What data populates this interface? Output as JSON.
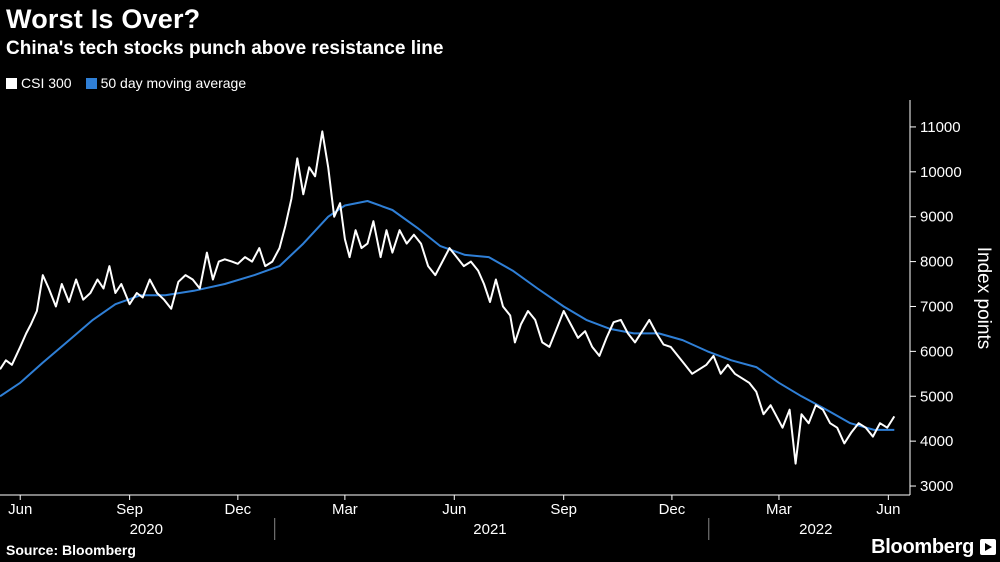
{
  "header": {
    "title": "Worst Is Over?",
    "subtitle": "China's tech stocks punch above resistance line"
  },
  "footer": {
    "source": "Source: Bloomberg",
    "brand": "Bloomberg"
  },
  "colors": {
    "csi": "#ffffff",
    "ma": "#2f7fd6",
    "background": "#000000"
  },
  "chart_data": {
    "type": "line",
    "title": "Worst Is Over?",
    "subtitle": "China's tech stocks punch above resistance line",
    "ylabel": "Index points",
    "ylim": [
      2800,
      11600
    ],
    "yticks": [
      3000,
      4000,
      5000,
      6000,
      7000,
      8000,
      9000,
      10000,
      11000
    ],
    "xlim": [
      "2020-05-15",
      "2022-06-15"
    ],
    "xticks": [
      {
        "date": "2020-06-01",
        "label": "Jun"
      },
      {
        "date": "2020-09-01",
        "label": "Sep"
      },
      {
        "date": "2020-12-01",
        "label": "Dec"
      },
      {
        "date": "2021-03-01",
        "label": "Mar"
      },
      {
        "date": "2021-06-01",
        "label": "Jun"
      },
      {
        "date": "2021-09-01",
        "label": "Sep"
      },
      {
        "date": "2021-12-01",
        "label": "Dec"
      },
      {
        "date": "2022-03-01",
        "label": "Mar"
      },
      {
        "date": "2022-06-01",
        "label": "Jun"
      }
    ],
    "years": [
      {
        "label": "2020",
        "date": "2020-09-15"
      },
      {
        "label": "2021",
        "date": "2021-07-01"
      },
      {
        "label": "2022",
        "date": "2022-04-01"
      }
    ],
    "year_separators": [
      "2021-01-01",
      "2022-01-01"
    ],
    "legend": "top-left",
    "grid": false,
    "series": [
      {
        "name": "CSI 300",
        "points": [
          [
            "2020-05-15",
            5600
          ],
          [
            "2020-05-20",
            5800
          ],
          [
            "2020-05-25",
            5700
          ],
          [
            "2020-06-01",
            6100
          ],
          [
            "2020-06-06",
            6400
          ],
          [
            "2020-06-10",
            6600
          ],
          [
            "2020-06-15",
            6900
          ],
          [
            "2020-06-20",
            7700
          ],
          [
            "2020-06-25",
            7400
          ],
          [
            "2020-07-01",
            7000
          ],
          [
            "2020-07-06",
            7500
          ],
          [
            "2020-07-12",
            7100
          ],
          [
            "2020-07-18",
            7600
          ],
          [
            "2020-07-24",
            7150
          ],
          [
            "2020-07-30",
            7300
          ],
          [
            "2020-08-05",
            7600
          ],
          [
            "2020-08-10",
            7400
          ],
          [
            "2020-08-15",
            7900
          ],
          [
            "2020-08-20",
            7300
          ],
          [
            "2020-08-25",
            7500
          ],
          [
            "2020-09-01",
            7050
          ],
          [
            "2020-09-07",
            7300
          ],
          [
            "2020-09-12",
            7200
          ],
          [
            "2020-09-18",
            7600
          ],
          [
            "2020-09-24",
            7300
          ],
          [
            "2020-09-30",
            7150
          ],
          [
            "2020-10-06",
            6950
          ],
          [
            "2020-10-12",
            7550
          ],
          [
            "2020-10-18",
            7700
          ],
          [
            "2020-10-24",
            7600
          ],
          [
            "2020-10-30",
            7400
          ],
          [
            "2020-11-05",
            8200
          ],
          [
            "2020-11-10",
            7600
          ],
          [
            "2020-11-15",
            8000
          ],
          [
            "2020-11-20",
            8050
          ],
          [
            "2020-11-26",
            8000
          ],
          [
            "2020-12-01",
            7950
          ],
          [
            "2020-12-07",
            8100
          ],
          [
            "2020-12-13",
            8000
          ],
          [
            "2020-12-19",
            8300
          ],
          [
            "2020-12-24",
            7900
          ],
          [
            "2020-12-30",
            8000
          ],
          [
            "2021-01-05",
            8300
          ],
          [
            "2021-01-10",
            8800
          ],
          [
            "2021-01-15",
            9400
          ],
          [
            "2021-01-20",
            10300
          ],
          [
            "2021-01-25",
            9500
          ],
          [
            "2021-01-30",
            10100
          ],
          [
            "2021-02-04",
            9900
          ],
          [
            "2021-02-10",
            10900
          ],
          [
            "2021-02-15",
            10100
          ],
          [
            "2021-02-20",
            9000
          ],
          [
            "2021-02-25",
            9300
          ],
          [
            "2021-03-01",
            8500
          ],
          [
            "2021-03-05",
            8100
          ],
          [
            "2021-03-10",
            8700
          ],
          [
            "2021-03-15",
            8300
          ],
          [
            "2021-03-20",
            8400
          ],
          [
            "2021-03-25",
            8900
          ],
          [
            "2021-03-31",
            8100
          ],
          [
            "2021-04-05",
            8700
          ],
          [
            "2021-04-10",
            8200
          ],
          [
            "2021-04-16",
            8700
          ],
          [
            "2021-04-22",
            8400
          ],
          [
            "2021-04-28",
            8600
          ],
          [
            "2021-05-04",
            8400
          ],
          [
            "2021-05-10",
            7900
          ],
          [
            "2021-05-16",
            7700
          ],
          [
            "2021-05-22",
            8000
          ],
          [
            "2021-05-28",
            8300
          ],
          [
            "2021-06-03",
            8100
          ],
          [
            "2021-06-09",
            7900
          ],
          [
            "2021-06-15",
            8000
          ],
          [
            "2021-06-21",
            7800
          ],
          [
            "2021-06-26",
            7500
          ],
          [
            "2021-07-01",
            7100
          ],
          [
            "2021-07-06",
            7600
          ],
          [
            "2021-07-12",
            7000
          ],
          [
            "2021-07-18",
            6800
          ],
          [
            "2021-07-22",
            6200
          ],
          [
            "2021-07-27",
            6600
          ],
          [
            "2021-08-02",
            6900
          ],
          [
            "2021-08-08",
            6700
          ],
          [
            "2021-08-14",
            6200
          ],
          [
            "2021-08-20",
            6100
          ],
          [
            "2021-08-26",
            6500
          ],
          [
            "2021-09-01",
            6900
          ],
          [
            "2021-09-07",
            6600
          ],
          [
            "2021-09-13",
            6300
          ],
          [
            "2021-09-19",
            6450
          ],
          [
            "2021-09-25",
            6100
          ],
          [
            "2021-10-01",
            5900
          ],
          [
            "2021-10-07",
            6300
          ],
          [
            "2021-10-13",
            6650
          ],
          [
            "2021-10-19",
            6700
          ],
          [
            "2021-10-25",
            6400
          ],
          [
            "2021-10-31",
            6200
          ],
          [
            "2021-11-06",
            6450
          ],
          [
            "2021-11-12",
            6700
          ],
          [
            "2021-11-18",
            6400
          ],
          [
            "2021-11-24",
            6150
          ],
          [
            "2021-11-30",
            6100
          ],
          [
            "2021-12-06",
            5900
          ],
          [
            "2021-12-12",
            5700
          ],
          [
            "2021-12-18",
            5500
          ],
          [
            "2021-12-24",
            5600
          ],
          [
            "2021-12-30",
            5700
          ],
          [
            "2022-01-05",
            5900
          ],
          [
            "2022-01-11",
            5500
          ],
          [
            "2022-01-17",
            5700
          ],
          [
            "2022-01-23",
            5500
          ],
          [
            "2022-01-29",
            5400
          ],
          [
            "2022-02-04",
            5300
          ],
          [
            "2022-02-10",
            5100
          ],
          [
            "2022-02-16",
            4600
          ],
          [
            "2022-02-22",
            4800
          ],
          [
            "2022-02-28",
            4500
          ],
          [
            "2022-03-04",
            4300
          ],
          [
            "2022-03-10",
            4700
          ],
          [
            "2022-03-15",
            3500
          ],
          [
            "2022-03-20",
            4600
          ],
          [
            "2022-03-26",
            4400
          ],
          [
            "2022-04-01",
            4800
          ],
          [
            "2022-04-07",
            4700
          ],
          [
            "2022-04-13",
            4400
          ],
          [
            "2022-04-19",
            4300
          ],
          [
            "2022-04-25",
            3950
          ],
          [
            "2022-05-01",
            4200
          ],
          [
            "2022-05-07",
            4400
          ],
          [
            "2022-05-13",
            4300
          ],
          [
            "2022-05-19",
            4100
          ],
          [
            "2022-05-25",
            4400
          ],
          [
            "2022-05-31",
            4300
          ],
          [
            "2022-06-06",
            4550
          ]
        ]
      },
      {
        "name": "50 day moving average",
        "points": [
          [
            "2020-05-15",
            5000
          ],
          [
            "2020-06-01",
            5300
          ],
          [
            "2020-06-20",
            5750
          ],
          [
            "2020-07-10",
            6200
          ],
          [
            "2020-08-01",
            6700
          ],
          [
            "2020-08-20",
            7050
          ],
          [
            "2020-09-10",
            7250
          ],
          [
            "2020-10-01",
            7250
          ],
          [
            "2020-10-25",
            7350
          ],
          [
            "2020-11-20",
            7500
          ],
          [
            "2020-12-15",
            7700
          ],
          [
            "2021-01-05",
            7900
          ],
          [
            "2021-01-25",
            8400
          ],
          [
            "2021-02-15",
            9000
          ],
          [
            "2021-03-01",
            9250
          ],
          [
            "2021-03-20",
            9350
          ],
          [
            "2021-04-10",
            9150
          ],
          [
            "2021-05-01",
            8750
          ],
          [
            "2021-05-20",
            8350
          ],
          [
            "2021-06-10",
            8150
          ],
          [
            "2021-06-30",
            8100
          ],
          [
            "2021-07-20",
            7800
          ],
          [
            "2021-08-10",
            7400
          ],
          [
            "2021-09-01",
            7000
          ],
          [
            "2021-09-20",
            6700
          ],
          [
            "2021-10-10",
            6500
          ],
          [
            "2021-10-30",
            6400
          ],
          [
            "2021-11-20",
            6400
          ],
          [
            "2021-12-10",
            6250
          ],
          [
            "2021-12-31",
            6000
          ],
          [
            "2022-01-20",
            5800
          ],
          [
            "2022-02-10",
            5650
          ],
          [
            "2022-03-01",
            5300
          ],
          [
            "2022-03-20",
            5000
          ],
          [
            "2022-04-10",
            4700
          ],
          [
            "2022-04-30",
            4400
          ],
          [
            "2022-05-20",
            4250
          ],
          [
            "2022-06-06",
            4250
          ]
        ]
      }
    ]
  }
}
